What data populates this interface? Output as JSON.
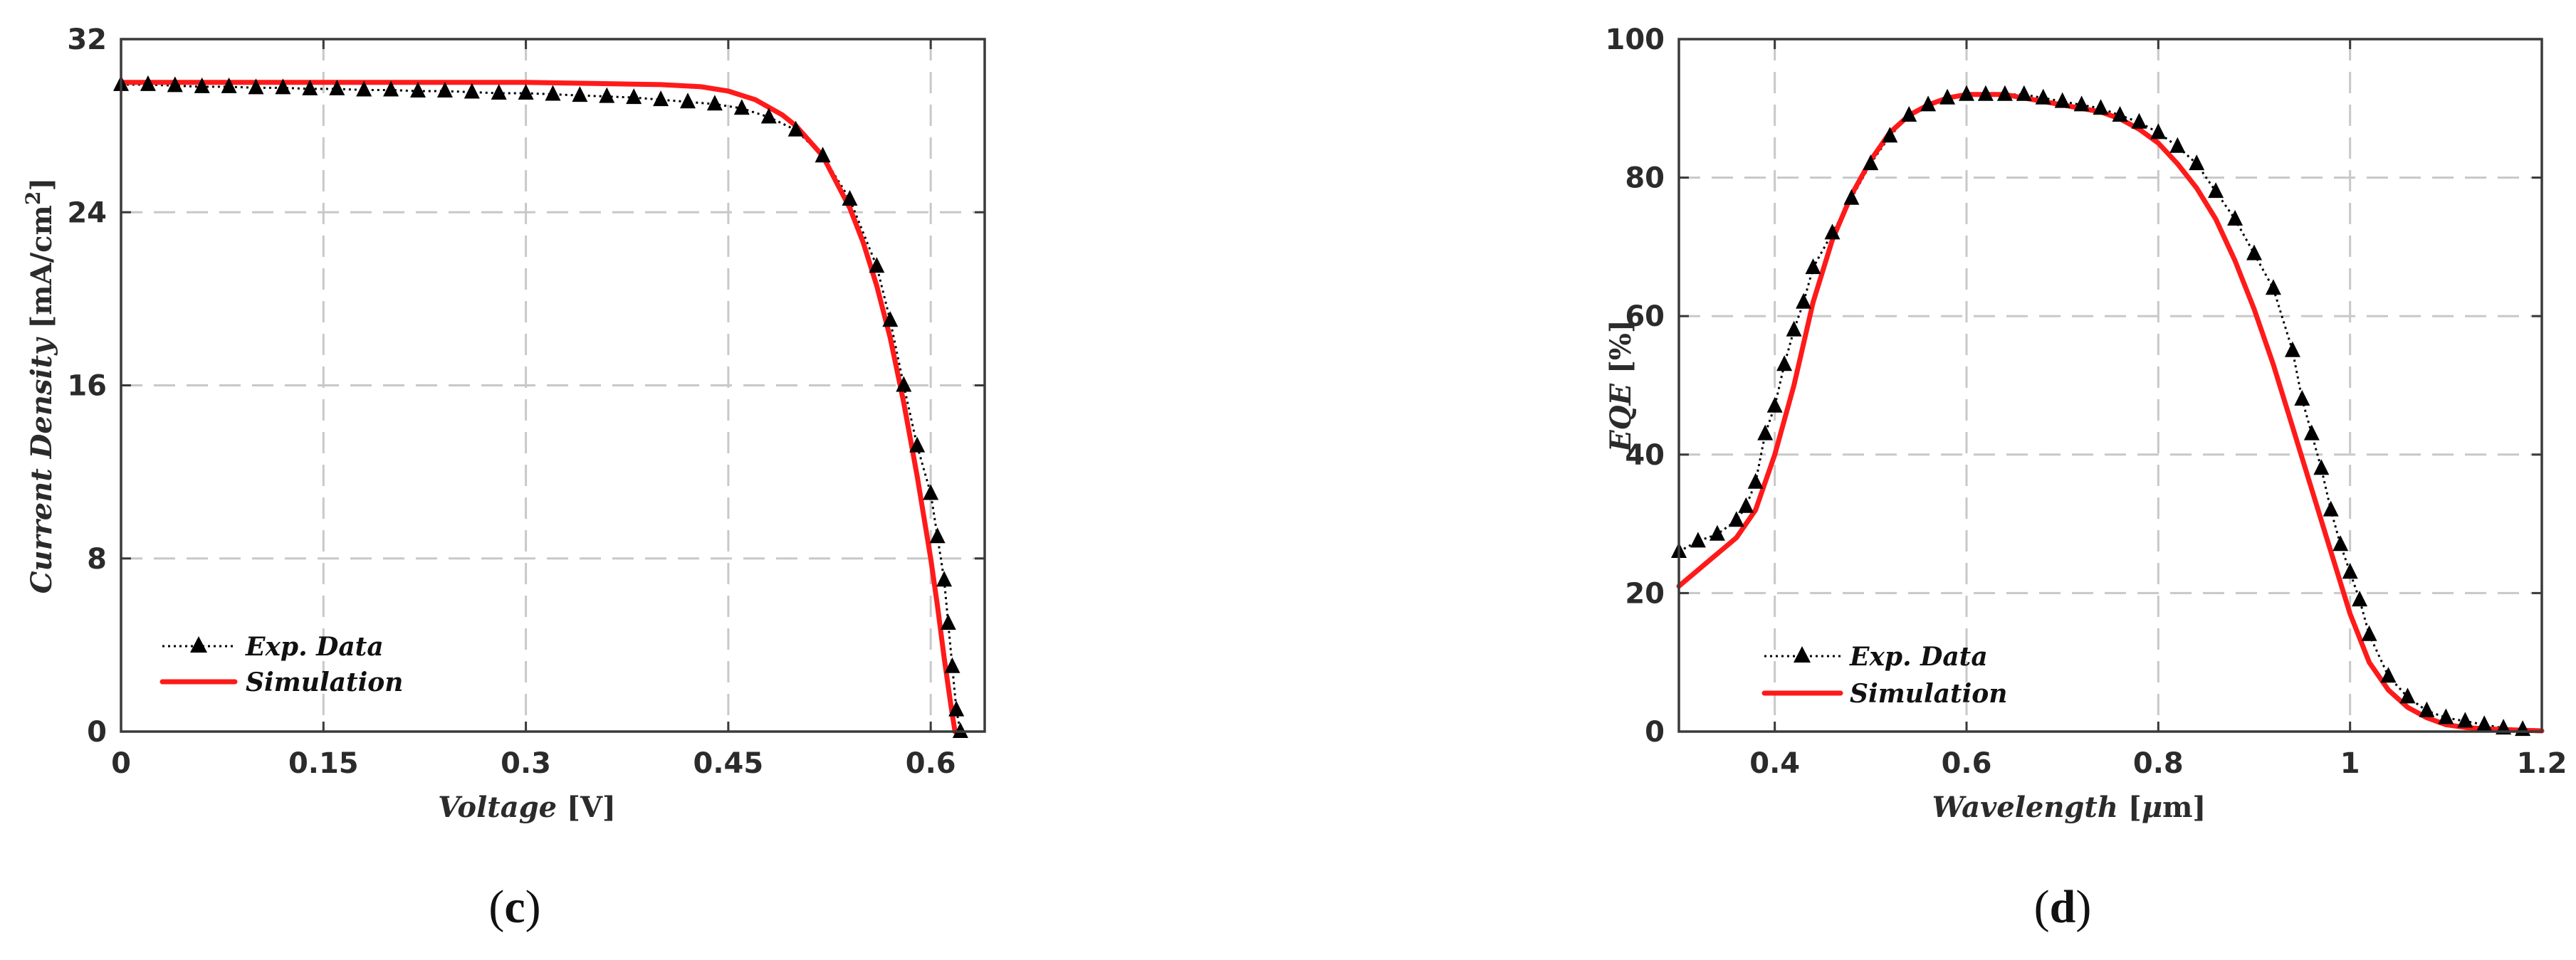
{
  "figure": {
    "panels": [
      {
        "id": "c",
        "label": "(c)",
        "label_letter": "c",
        "xlabel": {
          "italic": "Voltage",
          "unit": " [V]"
        },
        "ylabel": {
          "italic": "Current Density",
          "unit_pre": " [mA/cm",
          "unit_sup": "2",
          "unit_post": "]"
        },
        "xticks": [
          "0",
          "0.15",
          "0.3",
          "0.45",
          "0.6"
        ],
        "yticks": [
          "0",
          "8",
          "16",
          "24",
          "32"
        ],
        "legend": {
          "exp": "Exp. Data",
          "sim": "Simulation"
        }
      },
      {
        "id": "d",
        "label": "(d)",
        "label_letter": "d",
        "xlabel": {
          "italic": "Wavelength",
          "unit_pre": " [",
          "unit_greek": "μ",
          "unit_post": "m]"
        },
        "ylabel": {
          "italic": "EQE",
          "unit": " [%]"
        },
        "xticks": [
          "0.4",
          "0.6",
          "0.8",
          "1",
          "1.2"
        ],
        "yticks": [
          "0",
          "20",
          "40",
          "60",
          "80",
          "100"
        ],
        "legend": {
          "exp": "Exp. Data",
          "sim": "Simulation"
        }
      }
    ]
  },
  "colors": {
    "simulation": "#ff1a1a",
    "experiment": "#000000",
    "grid": "#c8c8c8"
  },
  "chart_data": [
    {
      "type": "line",
      "xlabel": "Voltage [V]",
      "ylabel": "Current Density [mA/cm2]",
      "xlim": [
        0,
        0.64
      ],
      "ylim": [
        0,
        32
      ],
      "grid": true,
      "legend_position": "bottom-left",
      "series": [
        {
          "name": "Exp. Data",
          "marker": "triangle",
          "x": [
            0,
            0.02,
            0.04,
            0.06,
            0.08,
            0.1,
            0.12,
            0.14,
            0.16,
            0.18,
            0.2,
            0.22,
            0.24,
            0.26,
            0.28,
            0.3,
            0.32,
            0.34,
            0.36,
            0.38,
            0.4,
            0.42,
            0.44,
            0.46,
            0.48,
            0.5,
            0.52,
            0.54,
            0.56,
            0.57,
            0.58,
            0.59,
            0.6,
            0.605,
            0.61,
            0.613,
            0.616,
            0.619,
            0.622
          ],
          "y": [
            29.9,
            29.9,
            29.85,
            29.8,
            29.8,
            29.75,
            29.75,
            29.7,
            29.7,
            29.65,
            29.65,
            29.6,
            29.6,
            29.55,
            29.5,
            29.5,
            29.45,
            29.4,
            29.35,
            29.3,
            29.2,
            29.1,
            29.0,
            28.8,
            28.4,
            27.8,
            26.6,
            24.6,
            21.5,
            19.0,
            16.0,
            13.2,
            11.0,
            9.0,
            7.0,
            5.0,
            3.0,
            1.0,
            0
          ]
        },
        {
          "name": "Simulation",
          "x": [
            0,
            0.05,
            0.1,
            0.15,
            0.2,
            0.25,
            0.3,
            0.35,
            0.4,
            0.43,
            0.45,
            0.47,
            0.49,
            0.5,
            0.52,
            0.54,
            0.55,
            0.56,
            0.57,
            0.58,
            0.59,
            0.6,
            0.605,
            0.61,
            0.615,
            0.618
          ],
          "y": [
            30.0,
            30.0,
            30.0,
            30.0,
            30.0,
            30.0,
            30.0,
            29.95,
            29.9,
            29.8,
            29.6,
            29.2,
            28.5,
            28.0,
            26.6,
            24.2,
            22.6,
            20.6,
            18.2,
            15.2,
            11.8,
            8.0,
            5.8,
            3.4,
            1.2,
            0
          ]
        }
      ]
    },
    {
      "type": "line",
      "xlabel": "Wavelength [μm]",
      "ylabel": "EQE [%]",
      "xlim": [
        0.3,
        1.2
      ],
      "ylim": [
        0,
        100
      ],
      "grid": true,
      "legend_position": "bottom-left",
      "series": [
        {
          "name": "Exp. Data",
          "marker": "triangle",
          "x": [
            0.3,
            0.32,
            0.34,
            0.36,
            0.37,
            0.38,
            0.39,
            0.4,
            0.41,
            0.42,
            0.43,
            0.44,
            0.46,
            0.48,
            0.5,
            0.52,
            0.54,
            0.56,
            0.58,
            0.6,
            0.62,
            0.64,
            0.66,
            0.68,
            0.7,
            0.72,
            0.74,
            0.76,
            0.78,
            0.8,
            0.82,
            0.84,
            0.86,
            0.88,
            0.9,
            0.92,
            0.94,
            0.95,
            0.96,
            0.97,
            0.98,
            0.99,
            1.0,
            1.01,
            1.02,
            1.04,
            1.06,
            1.08,
            1.1,
            1.12,
            1.14,
            1.16,
            1.18
          ],
          "y": [
            26,
            27.5,
            28.5,
            30.5,
            32.5,
            36,
            43,
            47,
            53,
            58,
            62,
            67,
            72,
            77,
            82,
            86,
            89,
            90.5,
            91.5,
            92,
            92,
            92,
            92,
            91.5,
            91,
            90.5,
            90,
            89,
            88,
            86.5,
            84.5,
            82,
            78,
            74,
            69,
            64,
            55,
            48,
            43,
            38,
            32,
            27,
            23,
            19,
            14,
            8,
            5,
            3,
            2,
            1.5,
            1,
            0.5,
            0.3
          ]
        },
        {
          "name": "Simulation",
          "x": [
            0.3,
            0.33,
            0.36,
            0.38,
            0.4,
            0.42,
            0.44,
            0.46,
            0.48,
            0.5,
            0.52,
            0.54,
            0.56,
            0.58,
            0.6,
            0.62,
            0.64,
            0.66,
            0.68,
            0.7,
            0.72,
            0.74,
            0.76,
            0.78,
            0.8,
            0.82,
            0.84,
            0.86,
            0.88,
            0.9,
            0.92,
            0.94,
            0.96,
            0.98,
            1.0,
            1.02,
            1.04,
            1.06,
            1.08,
            1.1,
            1.12,
            1.14,
            1.16,
            1.18,
            1.2
          ],
          "y": [
            21,
            24.5,
            28,
            32,
            40,
            50,
            62,
            71,
            77.5,
            82.5,
            86.5,
            89,
            90.5,
            91.5,
            92,
            92,
            92,
            91.5,
            91,
            90.5,
            90,
            89.5,
            88.5,
            87,
            85,
            82,
            78.5,
            74,
            68,
            61,
            53,
            44,
            35,
            26,
            17,
            10,
            6,
            3.5,
            2,
            1,
            0.6,
            0.4,
            0.3,
            0.2,
            0.1
          ]
        }
      ]
    }
  ]
}
